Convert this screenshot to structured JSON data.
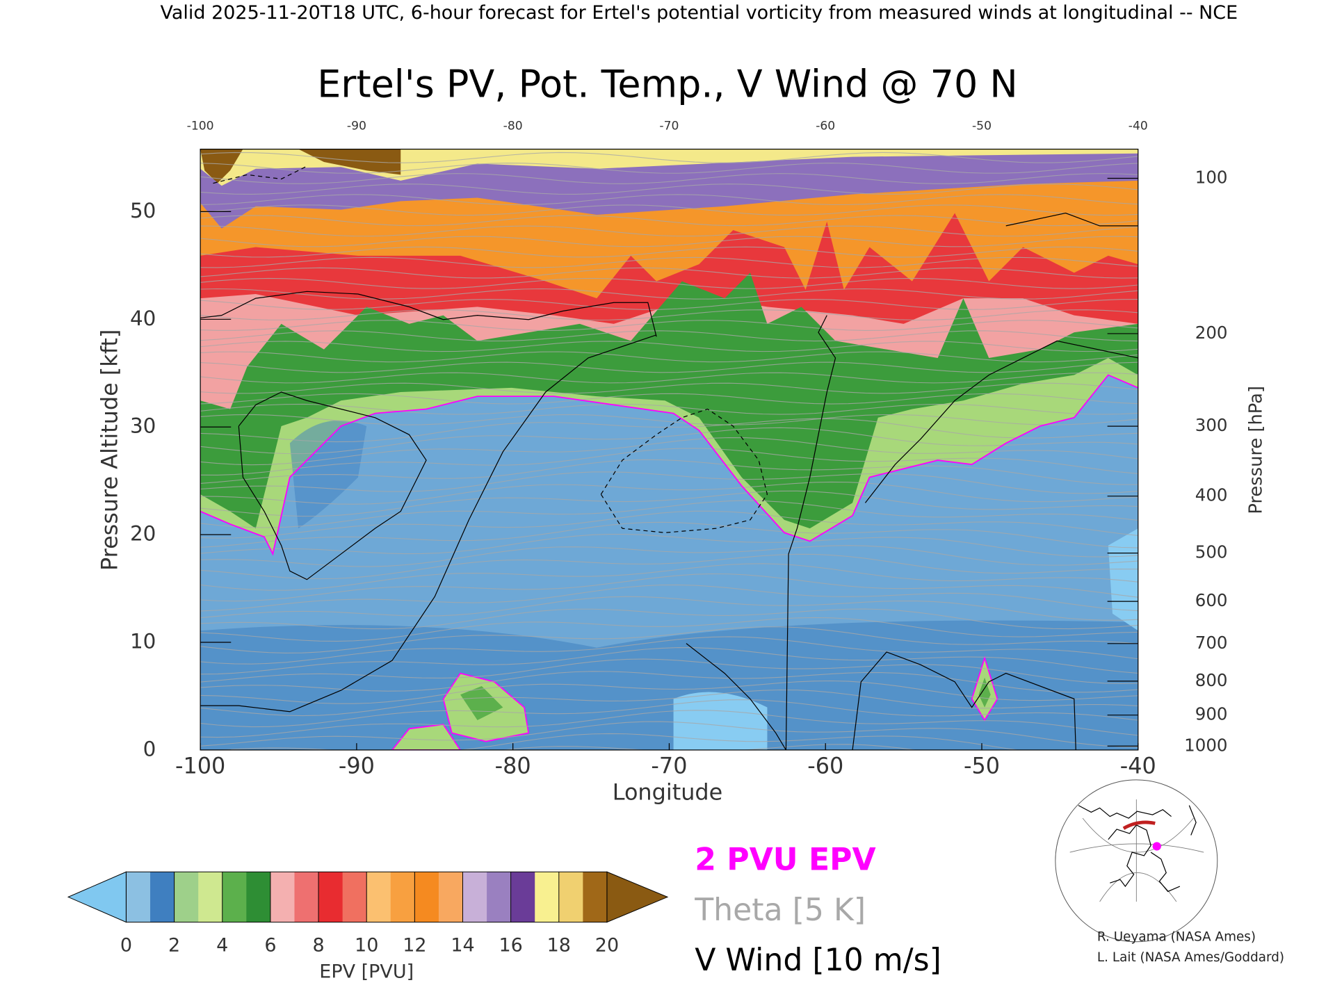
{
  "header": "Valid 2025-11-20T18 UTC, 6-hour forecast for Ertel's potential vorticity from measured winds at longitudinal -- NCE",
  "chart_data": {
    "type": "cross-section",
    "title": "Ertel's PV, Pot. Temp., V Wind @ 70 N",
    "x_label": "Longitude",
    "y_label": "Pressure Altitude [kft]",
    "y2_label": "Pressure [hPa]",
    "xlim": [
      -100,
      -40
    ],
    "xticks": [
      -100,
      -90,
      -80,
      -70,
      -60,
      -50,
      -40
    ],
    "ylim": [
      0,
      55.8
    ],
    "yticks": [
      0,
      10,
      20,
      30,
      40,
      50
    ],
    "y2lim": [
      1013.25,
      87.8
    ],
    "y2ticks": [
      100,
      200,
      300,
      400,
      500,
      600,
      700,
      800,
      900,
      1000
    ],
    "colorbar": {
      "label": "EPV [PVU]",
      "lim": [
        0,
        20
      ],
      "ticks": [
        0,
        2,
        4,
        6,
        8,
        10,
        12,
        14,
        16,
        18,
        20
      ],
      "colors": [
        "#8cc0e2",
        "#3f7fc0",
        "#9ed08a",
        "#cfe890",
        "#5cb04c",
        "#2e8e34",
        "#f4b0b0",
        "#ee7070",
        "#e82c30",
        "#f07060",
        "#fbc070",
        "#f8a040",
        "#f58a20",
        "#f8a860",
        "#c8b0d8",
        "#9a80c0",
        "#6a3c98",
        "#f8f090",
        "#f0d070",
        "#a06818"
      ],
      "under_color": "#80c8f0",
      "over_color": "#8a5a12"
    },
    "legend": [
      "2 PVU EPV",
      "Theta [5 K]",
      "V Wind [10 m/s]"
    ],
    "legend_colors": [
      "#ff00ff",
      "#a8a8a8",
      "#000000"
    ]
  },
  "credits": [
    "R. Ueyama (NASA Ames)",
    "L. Lait (NASA Ames/Goddard)"
  ]
}
